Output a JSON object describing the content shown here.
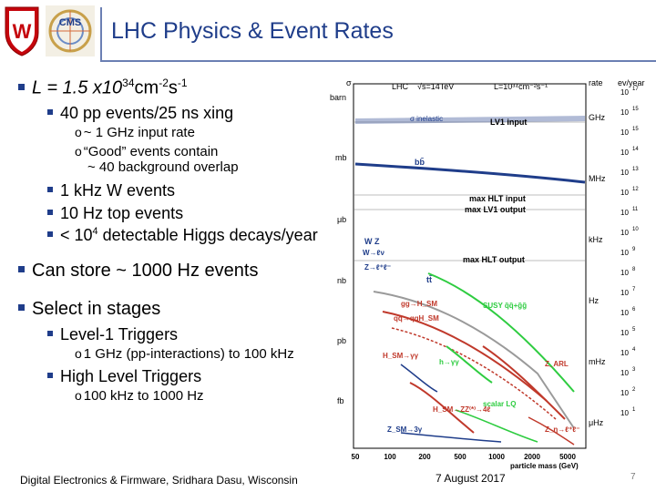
{
  "header": {
    "title": "LHC Physics & Event Rates",
    "logo_text": "CMS"
  },
  "bullets": {
    "lumi": {
      "prefix": "L = 1.5  x10",
      "exp1": "34",
      "mid": "cm",
      "exp2": "-2",
      "s": "s",
      "exp3": "-1"
    },
    "pp_events": "40 pp events/25 ns xing",
    "input_rate": "~ 1 GHz input rate",
    "good_events": "“Good” events contain",
    "overlap": "~ 40 background overlap",
    "w_events": "1 kHz W events",
    "top_events": "10 Hz top events",
    "higgs": {
      "prefix": "<  10",
      "exp": "4",
      "suffix": " detectable Higgs decays/year"
    },
    "store": "Can store ~ 1000 Hz events",
    "select": "Select in stages",
    "l1_triggers": "Level-1 Triggers",
    "l1_detail": "1 GHz (pp-interactions) to 100 kHz",
    "hlt": "High Level Triggers",
    "hlt_detail": "100 kHz to 1000 Hz"
  },
  "plot": {
    "top_left": "σ",
    "header_lhc": "LHC",
    "header_sqrt": "√s=14TeV",
    "header_lumi": "L=10³⁴cm⁻²s⁻¹",
    "header_rate": "rate",
    "header_evyear": "ev/year",
    "left_units": [
      "barn",
      "mb",
      "μb",
      "nb",
      "pb",
      "fb"
    ],
    "rate_units": [
      "GHz",
      "MHz",
      "kHz",
      "Hz",
      "mHz",
      "μHz"
    ],
    "right_exponents": [
      "17",
      "15",
      "15",
      "14",
      "13",
      "12",
      "11",
      "10",
      "9",
      "8",
      "7",
      "6",
      "5",
      "4",
      "3",
      "2",
      "1"
    ],
    "labels": {
      "sigma_inelastic": "σ inelastic",
      "lv1_input": "LV1 input",
      "bbbar": "bb̄",
      "max_hlt_input": "max HLT input",
      "max_lv1_output": "max LV1 output",
      "max_hlt_output": "max HLT output",
      "wz": "W Z",
      "w_lnu": "W→ℓν",
      "z_ll": "Z→ℓ⁺ℓ⁻",
      "ttbar": "tt̄",
      "gg_hsm": "gg→H_SM",
      "qq_qqhsm": "qq→qqH_SM",
      "susy": "SUSY q̃q̃+g̃g̃",
      "h_gg": "H_SM→γγ",
      "h_gamma": "h→γγ",
      "z_arl": "Z_ARL",
      "h_zz": "H_SM→ZZ⁽*⁾→4ℓ",
      "z_sm": "Z_SM→3γ",
      "scalar_lq": "scalar LQ",
      "z_ll2": "Z_η→ℓ⁺ℓ⁻"
    },
    "x_ticks": [
      "50",
      "100",
      "200",
      "500",
      "1000",
      "2000",
      "5000"
    ],
    "x_label": "particle mass (GeV)"
  },
  "footer": {
    "left": "Digital Electronics & Firmware, Sridhara Dasu, Wisconsin",
    "date": "7 August 2017",
    "page": "7"
  },
  "colors": {
    "title": "#1f3d8a",
    "bullet": "#1f3d8a",
    "rule": "#6b7fb3"
  }
}
